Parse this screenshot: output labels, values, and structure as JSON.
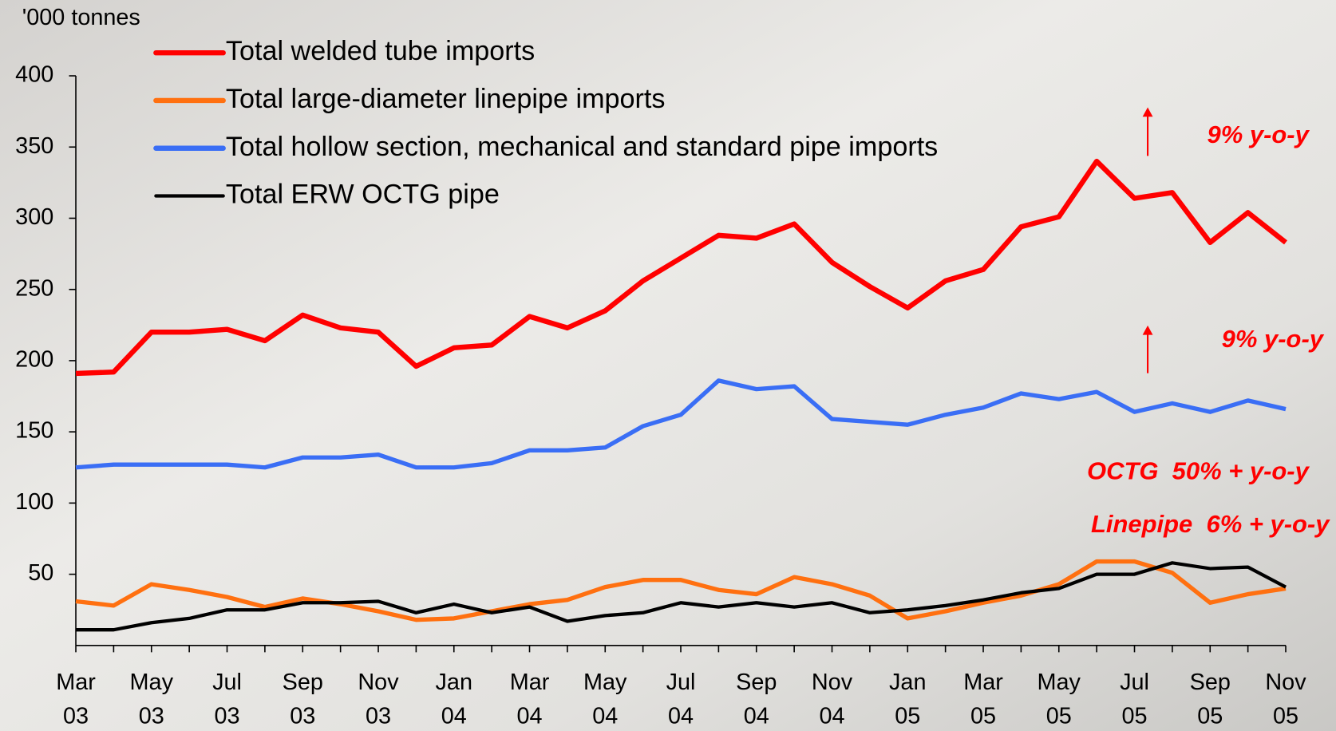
{
  "chart_data": {
    "type": "line",
    "y_axis_label": "'000 tonnes",
    "categories": [
      "Mar\n03",
      null,
      "May\n03",
      null,
      "Jul\n03",
      null,
      "Sep\n03",
      null,
      "Nov\n03",
      null,
      "Jan\n04",
      null,
      "Mar\n04",
      null,
      "May\n04",
      null,
      "Jul\n04",
      null,
      "Sep\n04",
      null,
      "Nov\n04",
      null,
      "Jan\n05",
      null,
      "Mar\n05",
      null,
      "May\n05",
      null,
      "Jul\n05",
      null,
      "Sep\n05",
      null,
      "Nov\n05"
    ],
    "series": [
      {
        "name": "Total welded tube imports",
        "color": "#ff0000",
        "values": [
          191,
          192,
          220,
          220,
          222,
          214,
          232,
          223,
          220,
          196,
          209,
          211,
          231,
          223,
          235,
          256,
          272,
          288,
          286,
          296,
          269,
          252,
          237,
          256,
          264,
          294,
          301,
          340,
          314,
          318,
          283,
          304,
          283
        ]
      },
      {
        "name": "Total large-diameter linepipe imports",
        "color": "#ff7010",
        "values": [
          31,
          28,
          43,
          39,
          34,
          27,
          33,
          29,
          24,
          18,
          19,
          24,
          29,
          32,
          41,
          46,
          46,
          39,
          36,
          48,
          43,
          35,
          19,
          24,
          30,
          35,
          43,
          59,
          59,
          51,
          30,
          36,
          40
        ]
      },
      {
        "name": "Total hollow section, mechanical and standard pipe imports",
        "color": "#3a6ef5",
        "values": [
          125,
          127,
          127,
          127,
          127,
          125,
          132,
          132,
          134,
          125,
          125,
          128,
          137,
          137,
          139,
          154,
          162,
          186,
          180,
          182,
          159,
          157,
          155,
          162,
          167,
          177,
          173,
          178,
          164,
          170,
          164,
          172,
          166
        ]
      },
      {
        "name": "Total ERW OCTG pipe",
        "color": "#000000",
        "values": [
          11,
          11,
          16,
          19,
          25,
          25,
          30,
          30,
          31,
          23,
          29,
          23,
          27,
          17,
          21,
          23,
          30,
          27,
          30,
          27,
          30,
          23,
          25,
          28,
          32,
          37,
          40,
          50,
          50,
          58,
          54,
          55,
          41
        ]
      }
    ],
    "ylim": [
      0,
      400
    ],
    "yticks": [
      50,
      100,
      150,
      200,
      250,
      300,
      350,
      400
    ],
    "annotations": [
      "9% y-o-y",
      "9% y-o-y",
      "OCTG  50% + y-o-y",
      "Linepipe  6% + y-o-y"
    ],
    "annotation_color": "#ff0000"
  }
}
